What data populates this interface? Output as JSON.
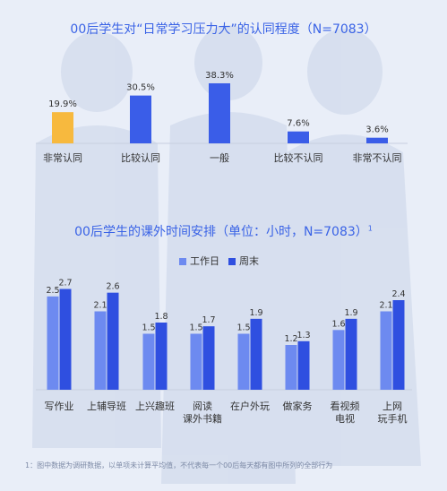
{
  "chart_data": [
    {
      "type": "bar",
      "title": "00后学生对“日常学习压力大”的认同程度（N=7083）",
      "categories": [
        "非常认同",
        "比较认同",
        "一般",
        "比较不认同",
        "非常不认同"
      ],
      "values": [
        19.9,
        30.5,
        38.3,
        7.6,
        3.6
      ],
      "data_labels": [
        "19.9%",
        "30.5%",
        "38.3%",
        "7.6%",
        "3.6%"
      ],
      "colors": [
        "#f7b93e",
        "#3a5de8",
        "#3a5de8",
        "#3a5de8",
        "#3a5de8"
      ],
      "ylim": [
        0,
        40
      ],
      "grid": false
    },
    {
      "type": "bar",
      "title": "00后学生的课外时间安排（单位：小时，N=7083）",
      "superscript": "1",
      "categories": [
        "写作业",
        "上辅导班",
        "上兴趣班",
        "阅读\n课外书籍",
        "在户外玩",
        "做家务",
        "看视频\n电视",
        "上网\n玩手机"
      ],
      "series": [
        {
          "name": "工作日",
          "values": [
            2.5,
            2.1,
            1.5,
            1.5,
            1.5,
            1.2,
            1.6,
            2.1
          ],
          "color": "#6d8af0"
        },
        {
          "name": "周末",
          "values": [
            2.7,
            2.6,
            1.8,
            1.7,
            1.9,
            1.3,
            1.9,
            2.4
          ],
          "color": "#2f4fe0"
        }
      ],
      "ylim": [
        0,
        3
      ],
      "legend": "top-center",
      "grid": false
    }
  ],
  "footnote": "1：图中数据为调研数据，以单项未计算平均值，不代表每一个00后每天都有图中所列的全部行为"
}
